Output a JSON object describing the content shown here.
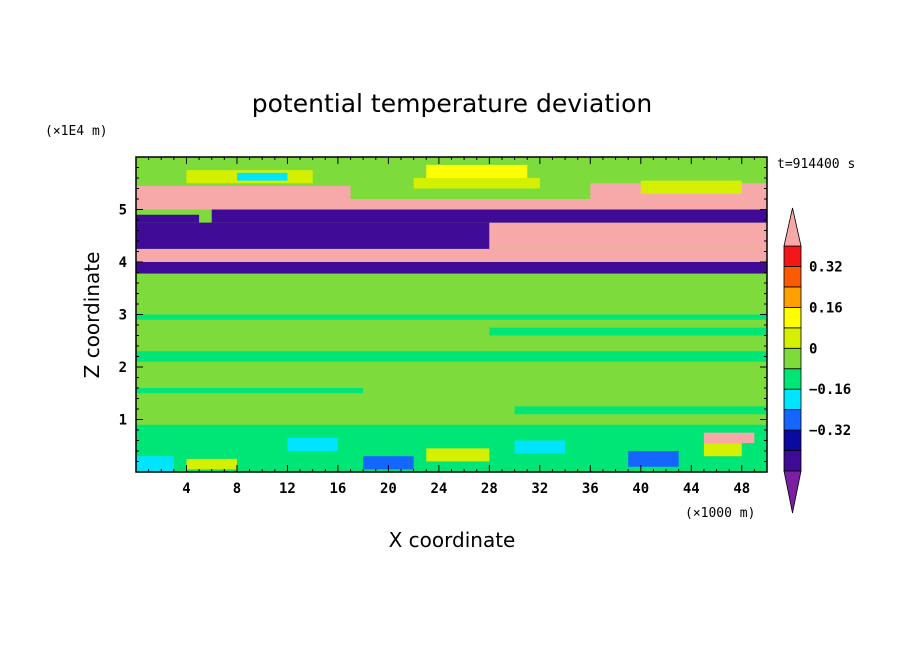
{
  "chart_data": {
    "type": "heatmap",
    "title": "potential temperature deviation",
    "time_label": "t=914400 s",
    "xlabel": "X coordinate",
    "ylabel": "Z coordinate",
    "x_unit": "(×1000 m)",
    "y_unit": "(×1E4 m)",
    "xlim": [
      0,
      50
    ],
    "ylim": [
      0,
      6
    ],
    "x_ticks": [
      4,
      8,
      12,
      16,
      20,
      24,
      28,
      32,
      36,
      40,
      44,
      48
    ],
    "x_tick_labels": [
      "4",
      "8",
      "12",
      "16",
      "20",
      "24",
      "28",
      "32",
      "36",
      "40",
      "44",
      "48"
    ],
    "y_ticks": [
      1,
      2,
      3,
      4,
      5
    ],
    "y_tick_labels": [
      "1",
      "2",
      "3",
      "4",
      "5"
    ],
    "colorbar": {
      "levels": [
        -0.48,
        -0.4,
        -0.32,
        -0.24,
        -0.16,
        -0.08,
        0,
        0.08,
        0.16,
        0.24,
        0.32,
        0.4
      ],
      "colors": [
        "#7b1fa2",
        "#3f0a96",
        "#0a0aa0",
        "#1565ff",
        "#00e5ff",
        "#00e676",
        "#7ddc3c",
        "#d4f000",
        "#ffff00",
        "#ffa000",
        "#ff5a00",
        "#f21818",
        "#f7a8a8"
      ],
      "tick_values": [
        0.32,
        0.16,
        0,
        -0.16,
        -0.32
      ],
      "tick_labels": [
        "0.32",
        "0.16",
        "0",
        "−0.16",
        "−0.32"
      ],
      "extend": "both"
    },
    "regions": [
      {
        "level": 6,
        "x0": 0,
        "x1": 50,
        "y0": 0.78,
        "y1": 3.78
      },
      {
        "level": 5,
        "x0": 0,
        "x1": 50,
        "y0": 0.0,
        "y1": 0.78
      },
      {
        "level": 5,
        "x0": 0,
        "x1": 50,
        "y0": 2.9,
        "y1": 3.0
      },
      {
        "level": 5,
        "x0": 0,
        "x1": 50,
        "y0": 2.1,
        "y1": 2.3
      },
      {
        "level": 5,
        "x0": 28,
        "x1": 50,
        "y0": 2.6,
        "y1": 2.75
      },
      {
        "level": 5,
        "x0": 0,
        "x1": 18,
        "y0": 1.5,
        "y1": 1.6
      },
      {
        "level": 5,
        "x0": 30,
        "x1": 50,
        "y0": 1.1,
        "y1": 1.25
      },
      {
        "level": 5,
        "x0": 0,
        "x1": 50,
        "y0": 0.78,
        "y1": 0.9
      },
      {
        "level": 5,
        "x0": 0,
        "x1": 50,
        "y0": 3.78,
        "y1": 3.8
      },
      {
        "level": 6,
        "x0": 0,
        "x1": 50,
        "y0": 3.8,
        "y1": 6.0
      },
      {
        "level": 1,
        "x0": 0,
        "x1": 50,
        "y0": 3.78,
        "y1": 4.0
      },
      {
        "level": 12,
        "x0": 0,
        "x1": 50,
        "y0": 4.0,
        "y1": 4.25
      },
      {
        "level": 1,
        "x0": 0,
        "x1": 28,
        "y0": 4.25,
        "y1": 4.75
      },
      {
        "level": 12,
        "x0": 28,
        "x1": 50,
        "y0": 4.25,
        "y1": 4.75
      },
      {
        "level": 1,
        "x0": 0,
        "x1": 5,
        "y0": 4.75,
        "y1": 4.9
      },
      {
        "level": 1,
        "x0": 6,
        "x1": 50,
        "y0": 4.75,
        "y1": 5.0
      },
      {
        "level": 12,
        "x0": 0,
        "x1": 50,
        "y0": 5.0,
        "y1": 5.2
      },
      {
        "level": 12,
        "x0": 0,
        "x1": 17,
        "y0": 5.2,
        "y1": 5.45
      },
      {
        "level": 12,
        "x0": 36,
        "x1": 50,
        "y0": 5.2,
        "y1": 5.5
      },
      {
        "level": 7,
        "x0": 4,
        "x1": 14,
        "y0": 5.5,
        "y1": 5.75
      },
      {
        "level": 4,
        "x0": 8,
        "x1": 12,
        "y0": 5.55,
        "y1": 5.7
      },
      {
        "level": 7,
        "x0": 22,
        "x1": 32,
        "y0": 5.4,
        "y1": 5.6
      },
      {
        "level": 8,
        "x0": 23,
        "x1": 31,
        "y0": 5.6,
        "y1": 5.85
      },
      {
        "level": 7,
        "x0": 40,
        "x1": 48,
        "y0": 5.3,
        "y1": 5.55
      },
      {
        "level": 3,
        "x0": 18,
        "x1": 22,
        "y0": 0.05,
        "y1": 0.3
      },
      {
        "level": 3,
        "x0": 39,
        "x1": 43,
        "y0": 0.1,
        "y1": 0.4
      },
      {
        "level": 7,
        "x0": 4,
        "x1": 8,
        "y0": 0.05,
        "y1": 0.25
      },
      {
        "level": 7,
        "x0": 23,
        "x1": 28,
        "y0": 0.2,
        "y1": 0.45
      },
      {
        "level": 7,
        "x0": 45,
        "x1": 48,
        "y0": 0.3,
        "y1": 0.55
      },
      {
        "level": 4,
        "x0": 0,
        "x1": 3,
        "y0": 0.0,
        "y1": 0.3
      },
      {
        "level": 4,
        "x0": 12,
        "x1": 16,
        "y0": 0.4,
        "y1": 0.65
      },
      {
        "level": 4,
        "x0": 30,
        "x1": 34,
        "y0": 0.35,
        "y1": 0.6
      },
      {
        "level": 12,
        "x0": 45,
        "x1": 49,
        "y0": 0.55,
        "y1": 0.75
      }
    ]
  }
}
